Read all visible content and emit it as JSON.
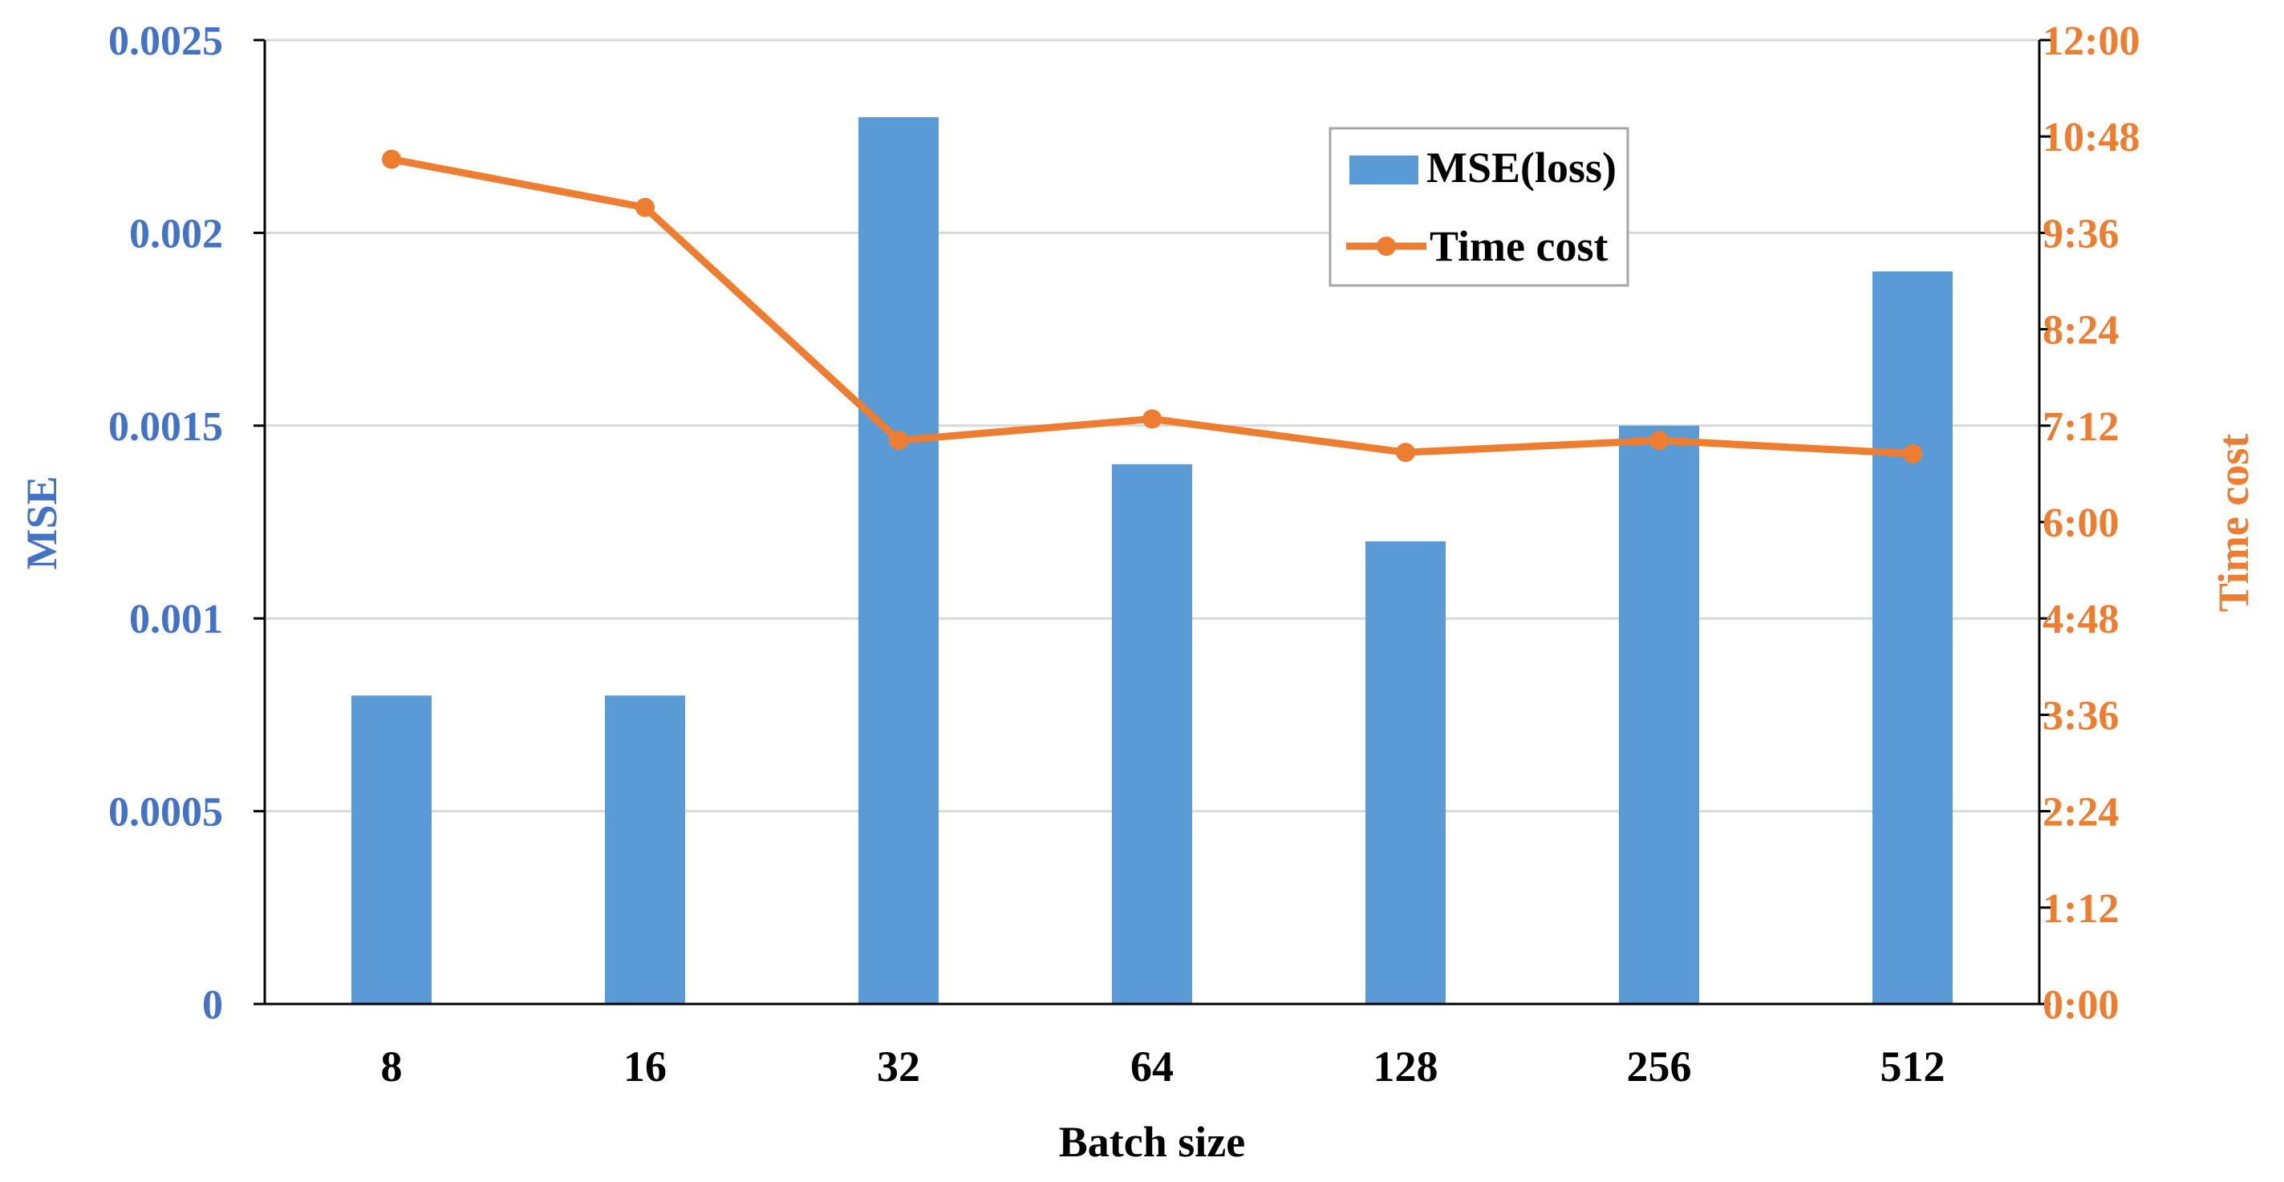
{
  "chart_data": {
    "type": "bar+line",
    "categories": [
      "8",
      "16",
      "32",
      "64",
      "128",
      "256",
      "512"
    ],
    "xlabel": "Batch size",
    "series": [
      {
        "name": "MSE(loss)",
        "type": "bar",
        "axis": "left",
        "values": [
          0.0008,
          0.0008,
          0.0023,
          0.0014,
          0.0012,
          0.0015,
          0.0019
        ]
      },
      {
        "name": "Time cost",
        "type": "line",
        "axis": "right",
        "values_minutes": [
          631,
          595,
          421,
          437,
          412,
          421,
          411
        ]
      }
    ],
    "left_axis": {
      "label": "MSE",
      "range": [
        0,
        0.0025
      ],
      "ticks": [
        0,
        0.0005,
        0.001,
        0.0015,
        0.002,
        0.0025
      ],
      "tick_labels": [
        "0",
        "0.0005",
        "0.001",
        "0.0015",
        "0.002",
        "0.0025"
      ],
      "color": "#4472C4"
    },
    "right_axis": {
      "label": "Time cost",
      "range_minutes": [
        0,
        720
      ],
      "ticks_minutes": [
        0,
        72,
        144,
        216,
        288,
        360,
        432,
        504,
        576,
        648,
        720
      ],
      "tick_labels": [
        "0:00",
        "1:12",
        "2:24",
        "3:36",
        "4:48",
        "6:00",
        "7:12",
        "8:24",
        "9:36",
        "10:48",
        "12:00"
      ],
      "color": "#ED7D31"
    },
    "grid": true,
    "legend_position": "top-right",
    "colors": {
      "bar": "#5B9BD5",
      "line": "#ED7D31",
      "grid": "#D9D9D9",
      "axis": "#000000",
      "legend_border": "#A6A6A6"
    }
  }
}
